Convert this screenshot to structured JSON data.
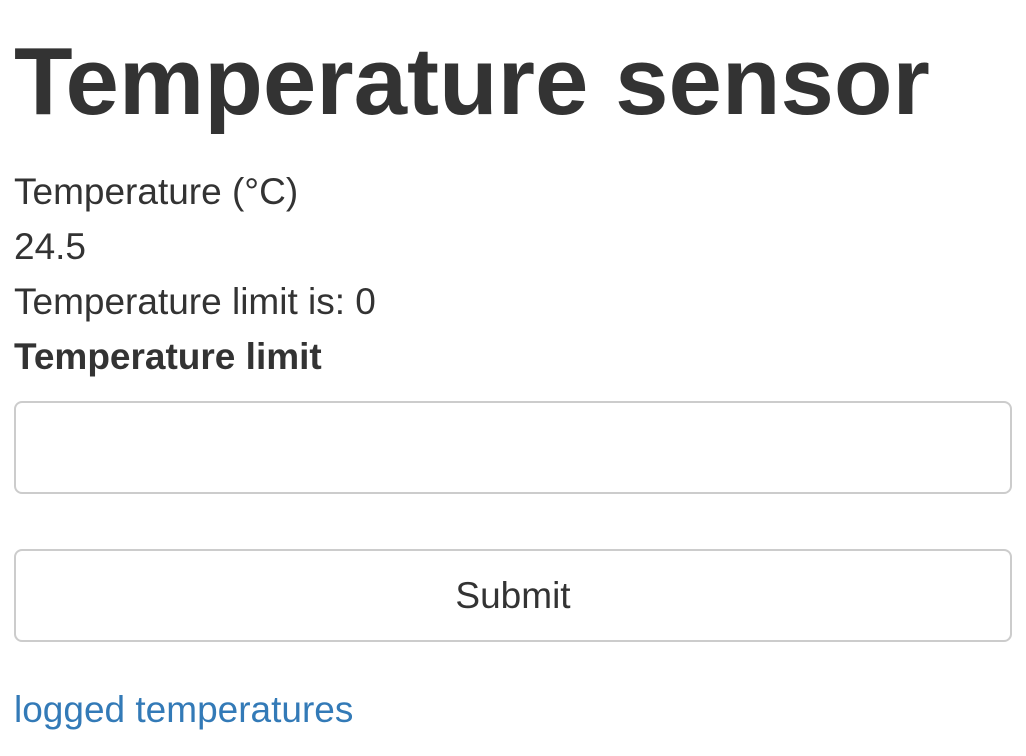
{
  "page": {
    "title": "Temperature sensor"
  },
  "reading": {
    "label": "Temperature (°C)",
    "value": "24.5"
  },
  "limit": {
    "current_text": "Temperature limit is: 0",
    "field_label": "Temperature limit",
    "input_value": "",
    "input_placeholder": ""
  },
  "form": {
    "submit_label": "Submit"
  },
  "links": {
    "logged_temperatures": "logged temperatures"
  },
  "colors": {
    "text": "#333333",
    "link": "#337ab7",
    "border": "#cccccc",
    "background": "#ffffff"
  }
}
